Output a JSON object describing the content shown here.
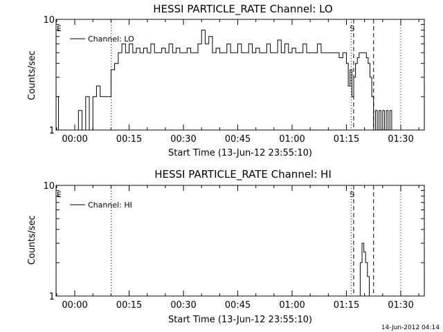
{
  "chart_data": [
    {
      "type": "line",
      "title": "HESSI PARTICLE_RATE Channel: LO",
      "xlabel": "Start Time (13-Jun-12 23:55:10)",
      "ylabel": "Counts/sec",
      "yscale": "log",
      "ylim": [
        1,
        10
      ],
      "ytick_labels": [
        "1",
        "10"
      ],
      "xlim_minutes": [
        -5.17,
        96.5
      ],
      "xtick_labels": [
        "00:00",
        "00:15",
        "00:30",
        "00:45",
        "01:00",
        "01:15",
        "01:30"
      ],
      "xtick_minutes": [
        0,
        15,
        30,
        45,
        60,
        75,
        90
      ],
      "legend": "top-left",
      "series": [
        {
          "name": "Channel: LO",
          "x_minutes": [
            -5.0,
            -4.5,
            -4.0,
            -3.0,
            -2.0,
            -1.0,
            0.0,
            1.0,
            2.0,
            3.0,
            4.0,
            5.0,
            6.0,
            7.0,
            8.0,
            9.0,
            10.0,
            11.0,
            12.0,
            13.0,
            14.0,
            15.0,
            16.0,
            17.0,
            18.0,
            19.0,
            20.0,
            21.0,
            22.0,
            23.0,
            24.0,
            25.0,
            26.0,
            27.0,
            28.0,
            29.0,
            30.0,
            31.0,
            32.0,
            33.0,
            34.0,
            35.0,
            36.0,
            37.0,
            38.0,
            39.0,
            40.0,
            41.0,
            42.0,
            43.0,
            44.0,
            45.0,
            46.0,
            47.0,
            48.0,
            49.0,
            50.0,
            51.0,
            52.0,
            53.0,
            54.0,
            55.0,
            56.0,
            57.0,
            58.0,
            59.0,
            60.0,
            61.0,
            62.0,
            63.0,
            64.0,
            65.0,
            66.0,
            67.0,
            68.0,
            69.0,
            70.0,
            71.0,
            72.0,
            73.0,
            74.0,
            75.0,
            75.5,
            76.0,
            76.5,
            77.0,
            77.5,
            78.0,
            78.5,
            79.0,
            79.5,
            80.0,
            80.5,
            81.0,
            81.5,
            82.0,
            82.5,
            83.0,
            83.5,
            84.0,
            84.5,
            85.0,
            85.5,
            86.0,
            86.5,
            87.0,
            87.5,
            88.0
          ],
          "y": [
            2.0,
            1.0,
            1.0,
            1.0,
            1.0,
            1.0,
            1.0,
            1.5,
            1.0,
            2.0,
            1.0,
            2.0,
            2.5,
            2.0,
            2.0,
            2.0,
            3.5,
            4.0,
            5.0,
            6.0,
            5.0,
            6.0,
            5.0,
            5.5,
            5.0,
            5.5,
            5.0,
            6.0,
            5.0,
            5.0,
            5.5,
            5.0,
            6.0,
            5.0,
            5.5,
            5.0,
            5.0,
            5.5,
            5.0,
            5.0,
            6.0,
            8.0,
            6.0,
            7.0,
            5.0,
            5.5,
            5.0,
            5.0,
            6.0,
            5.0,
            5.0,
            6.0,
            5.0,
            5.0,
            6.0,
            5.0,
            5.5,
            5.0,
            5.0,
            6.0,
            5.0,
            5.0,
            6.5,
            5.0,
            6.0,
            5.0,
            5.5,
            5.0,
            5.0,
            6.0,
            5.0,
            5.0,
            5.0,
            6.0,
            5.0,
            5.0,
            5.0,
            5.0,
            5.0,
            4.5,
            5.0,
            4.0,
            2.5,
            3.5,
            2.0,
            3.0,
            4.0,
            4.5,
            5.0,
            5.0,
            5.0,
            5.0,
            4.5,
            4.0,
            3.0,
            2.0,
            1.0,
            1.5,
            1.0,
            1.5,
            1.0,
            1.5,
            1.0,
            1.5,
            1.0,
            1.5,
            1.0,
            1.0
          ]
        }
      ],
      "annotations": [
        {
          "text": "E",
          "minute": -5.0,
          "line": "none"
        },
        {
          "text": "S",
          "minute": 76.3,
          "line": "dotted"
        },
        {
          "text": "",
          "minute": 77.0,
          "line": "dashed"
        },
        {
          "text": "",
          "minute": 82.5,
          "line": "dashed"
        },
        {
          "text": "",
          "minute": 10.0,
          "line": "dotted"
        },
        {
          "text": "",
          "minute": 90.0,
          "line": "dotted"
        }
      ]
    },
    {
      "type": "line",
      "title": "HESSI PARTICLE_RATE Channel: HI",
      "xlabel": "Start Time (13-Jun-12 23:55:10)",
      "ylabel": "Counts/sec",
      "yscale": "log",
      "ylim": [
        1,
        10
      ],
      "ytick_labels": [
        "1",
        "10"
      ],
      "xlim_minutes": [
        -5.17,
        96.5
      ],
      "xtick_labels": [
        "00:00",
        "00:15",
        "00:30",
        "00:45",
        "01:00",
        "01:15",
        "01:30"
      ],
      "xtick_minutes": [
        0,
        15,
        30,
        45,
        60,
        75,
        90
      ],
      "legend": "top-left",
      "series": [
        {
          "name": "Channel: HI",
          "x_minutes": [
            78.3,
            78.8,
            79.3,
            79.8,
            80.3,
            80.8,
            81.3
          ],
          "y": [
            1.0,
            2.0,
            3.0,
            2.5,
            2.0,
            1.5,
            1.0
          ]
        }
      ],
      "annotations": [
        {
          "text": "E",
          "minute": -5.0,
          "line": "none"
        },
        {
          "text": "S",
          "minute": 76.3,
          "line": "dotted"
        },
        {
          "text": "",
          "minute": 77.0,
          "line": "dashed"
        },
        {
          "text": "",
          "minute": 82.5,
          "line": "dashed"
        },
        {
          "text": "",
          "minute": 10.0,
          "line": "dotted"
        },
        {
          "text": "",
          "minute": 90.0,
          "line": "dotted"
        }
      ]
    }
  ],
  "footer_timestamp": "14-Jun-2012 04:14"
}
